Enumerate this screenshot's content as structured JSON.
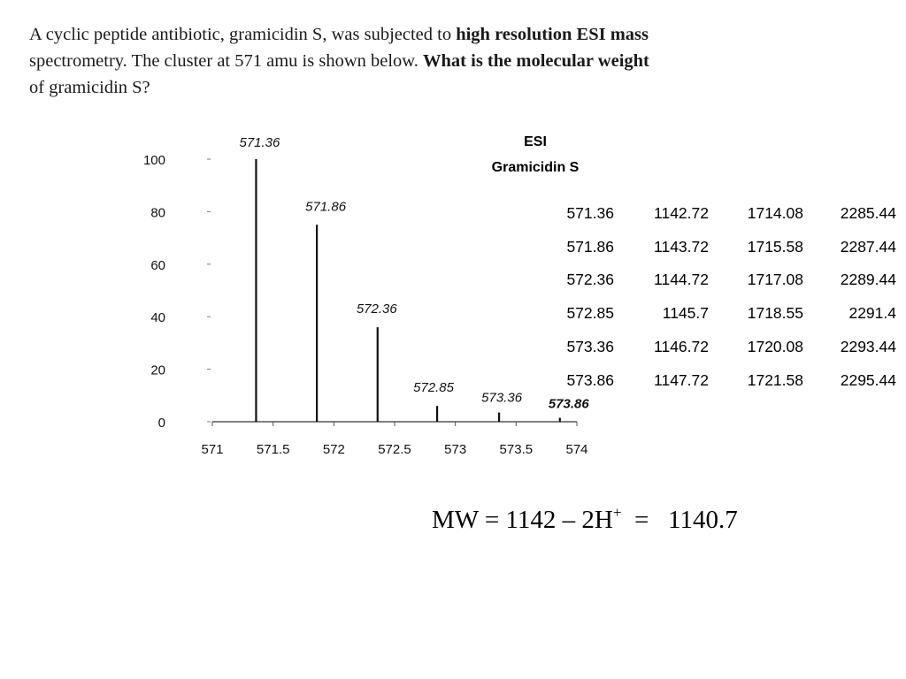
{
  "question": {
    "line1_a": "A cyclic peptide antibiotic, gramicidin S, was subjected to ",
    "line1_b": "high resolution ESI mass",
    "line2_a": "spectrometry. The cluster at 571 amu is shown below. ",
    "line2_b": "What is the molecular weight",
    "line3": "of gramicidin S?"
  },
  "chart_data": {
    "type": "bar",
    "title": "ESI",
    "subtitle": "Gramicidin S",
    "xlabel": "",
    "ylabel": "",
    "xlim": [
      571,
      574
    ],
    "ylim": [
      0,
      100
    ],
    "x_ticks": [
      571,
      571.5,
      572,
      572.5,
      573,
      573.5,
      574
    ],
    "x_tick_labels": [
      "571",
      "571.5",
      "572",
      "572.5",
      "573",
      "573.5",
      "574"
    ],
    "y_ticks": [
      0,
      20,
      40,
      60,
      80,
      100
    ],
    "y_tick_labels": [
      "0",
      "20",
      "40",
      "60",
      "80",
      "100"
    ],
    "peaks": [
      {
        "mz": 571.36,
        "label": "571.36",
        "intensity": 100
      },
      {
        "mz": 571.86,
        "label": "571.86",
        "intensity": 75
      },
      {
        "mz": 572.36,
        "label": "572.36",
        "intensity": 36
      },
      {
        "mz": 572.85,
        "label": "572.85",
        "intensity": 6
      },
      {
        "mz": 573.36,
        "label": "573.36",
        "intensity": 3.5
      },
      {
        "mz": 573.86,
        "label": "573.86",
        "intensity": 1.5
      }
    ],
    "grid": false
  },
  "table": {
    "rows": [
      [
        "571.36",
        "1142.72",
        "1714.08",
        "2285.44"
      ],
      [
        "571.86",
        "1143.72",
        "1715.58",
        "2287.44"
      ],
      [
        "572.36",
        "1144.72",
        "1717.08",
        "2289.44"
      ],
      [
        "572.85",
        "1145.7",
        "1718.55",
        "2291.4"
      ],
      [
        "573.36",
        "1146.72",
        "1720.08",
        "2293.44"
      ],
      [
        "573.86",
        "1147.72",
        "1721.58",
        "2295.44"
      ]
    ]
  },
  "answer": {
    "prefix": "MW = 1142 – 2H",
    "superscript": "+",
    "suffix": "  =   1140.7"
  }
}
